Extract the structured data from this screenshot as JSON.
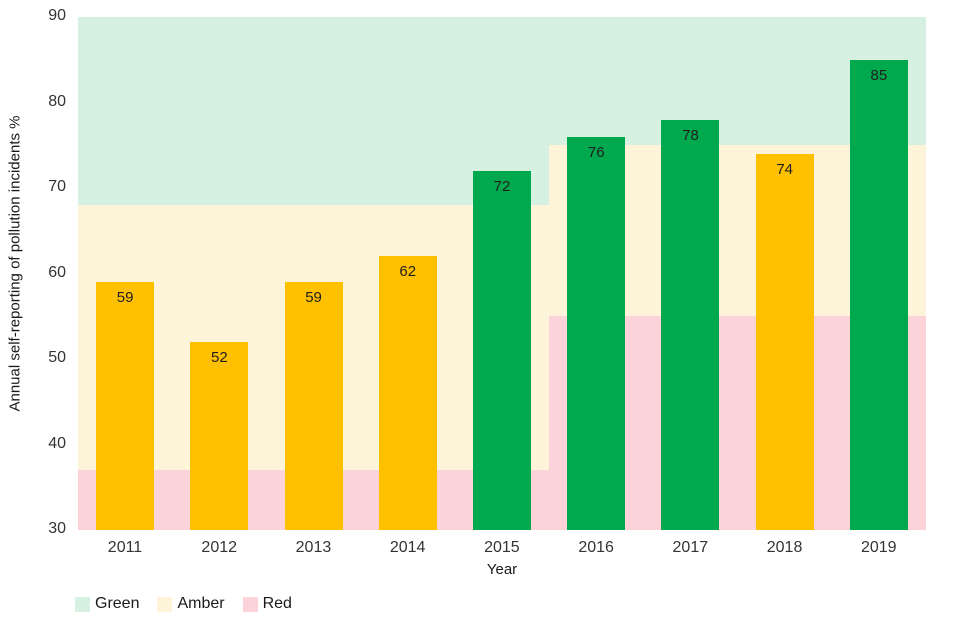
{
  "chart_data": {
    "type": "bar",
    "title": "",
    "ylabel": "Annual self-reporting of pollution incidents %",
    "xlabel": "Year",
    "ylim": [
      30,
      90
    ],
    "yticks": [
      90,
      80,
      70,
      60,
      50,
      40,
      30
    ],
    "grid": false,
    "categories": [
      "2011",
      "2012",
      "2013",
      "2014",
      "2015",
      "2016",
      "2017",
      "2018",
      "2019"
    ],
    "values": [
      59,
      52,
      59,
      62,
      72,
      76,
      78,
      74,
      85
    ],
    "bar_status": [
      "amber",
      "amber",
      "amber",
      "amber",
      "green",
      "green",
      "green",
      "amber",
      "green"
    ],
    "bar_colors": {
      "green": "#00a94e",
      "amber": "#ffc000"
    },
    "zone_colors": {
      "green": "#d6f0e2",
      "amber": "#fdf4d9",
      "red": "#fbd3d8"
    },
    "zones": [
      {
        "from_category": "2011",
        "to_category": "2015",
        "green_min": 68,
        "amber_min": 37,
        "red_min": 30
      },
      {
        "from_category": "2016",
        "to_category": "2019",
        "green_min": 75,
        "amber_min": 55,
        "red_min": 30
      }
    ],
    "legend_position": "bottom-left",
    "legend": [
      {
        "label": "Green",
        "color": "#d6f0e2"
      },
      {
        "label": "Amber",
        "color": "#fdf4d9"
      },
      {
        "label": "Red",
        "color": "#fbd3d8"
      }
    ]
  }
}
